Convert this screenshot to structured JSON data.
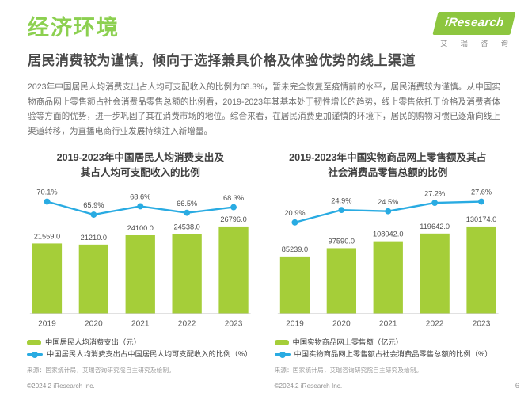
{
  "page": {
    "section_title": "经济环境",
    "headline": "居民消费较为谨慎，倾向于选择兼具价格及体验优势的线上渠道",
    "body": "2023年中国居民人均消费支出占人均可支配收入的比例为68.3%，暂未完全恢复至疫情前的水平，居民消费较为谨慎。从中国实物商品网上零售额占社会消费品零售总额的比例看，2019-2023年其基本处于韧性增长的趋势，线上零售依托于价格及消费者体验等方面的优势，进一步巩固了其在消费市场的地位。综合来看，在居民消费更加谨慎的环境下，居民的购物习惯已逐渐向线上渠道转移，为直播电商行业发展持续注入新增量。",
    "page_number": "6"
  },
  "logo": {
    "brand": "iResearch",
    "brand_cn": "艾 瑞 咨 询"
  },
  "colors": {
    "bar_green": "#A5CE39",
    "line_blue": "#29ABE2",
    "section_title_green": "#8CD050",
    "logo_green": "#8DC63F"
  },
  "chart_data": [
    {
      "type": "bar",
      "title": [
        "2019-2023年中国居民人均消费支出及",
        "其占人均可支配收入的比例"
      ],
      "categories": [
        "2019",
        "2020",
        "2021",
        "2022",
        "2023"
      ],
      "series": [
        {
          "name": "中国居民人均消费支出（元）",
          "type": "bar",
          "values": [
            21559.0,
            21210.0,
            24100.0,
            24538.0,
            26796.0
          ],
          "color": "#A5CE39"
        },
        {
          "name": "中国居民人均消费支出占中国居民人均可支配收入的比例（%）",
          "type": "line",
          "values": [
            70.1,
            65.9,
            68.6,
            66.5,
            68.3
          ],
          "color": "#29ABE2"
        }
      ],
      "ylim": [
        0,
        30000
      ],
      "grid": false,
      "legend_position": "bottom-left",
      "source": "来源：国家统计局，艾瑞咨询研究院自主研究及绘制。",
      "copyright": "©2024.2 iResearch Inc."
    },
    {
      "type": "bar",
      "title": [
        "2019-2023年中国实物商品网上零售额及其占",
        "社会消费品零售总额的比例"
      ],
      "categories": [
        "2019",
        "2020",
        "2021",
        "2022",
        "2023"
      ],
      "series": [
        {
          "name": "中国实物商品网上零售额（亿元）",
          "type": "bar",
          "values": [
            85239.0,
            97590.0,
            108042.0,
            119642.0,
            130174.0
          ],
          "color": "#A5CE39"
        },
        {
          "name": "中国实物商品网上零售额占社会消费品零售总额的比例（%）",
          "type": "line",
          "values": [
            20.9,
            24.9,
            24.5,
            27.2,
            27.6
          ],
          "color": "#29ABE2"
        }
      ],
      "ylim": [
        0,
        140000
      ],
      "grid": false,
      "legend_position": "bottom-left",
      "source": "来源：国家统计局，艾瑞咨询研究院自主研究及绘制。",
      "copyright": "©2024.2 iResearch Inc."
    }
  ]
}
